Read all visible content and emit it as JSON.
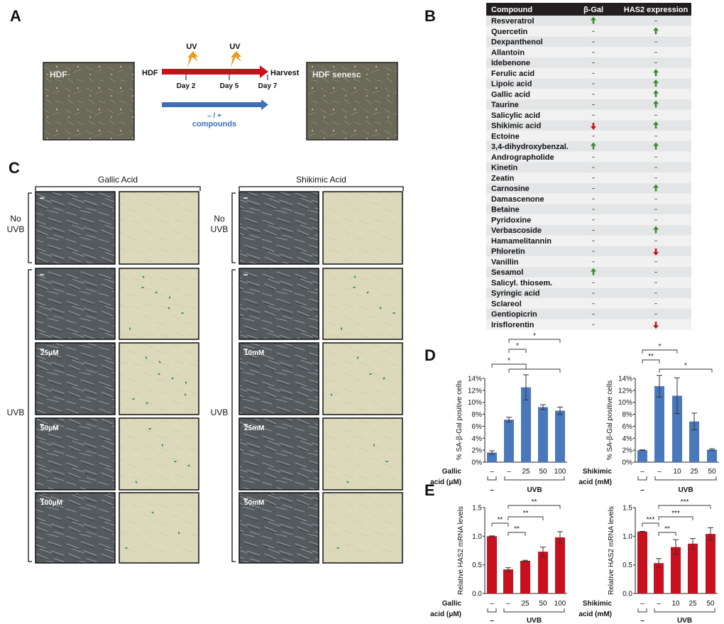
{
  "panel_labels": {
    "a": "A",
    "b": "B",
    "c": "C",
    "d": "D",
    "e": "E"
  },
  "panel_a": {
    "left_image_label": "HDF",
    "right_image_label": "HDF senesc",
    "start_label": "HDF",
    "end_label": "Harvest",
    "uv_labels": [
      "UV",
      "UV"
    ],
    "days": [
      "Day 2",
      "Day 5",
      "Day 7"
    ],
    "treatment_line1": "– / +",
    "treatment_line2": "compounds",
    "colors": {
      "timeline": "#c8101e",
      "treatment": "#3f6fb5",
      "uv_bolt": "#e79d1c"
    }
  },
  "panel_b": {
    "headers": [
      "Compound",
      "β-Gal",
      "HAS2 expression"
    ],
    "rows": [
      {
        "compound": "Resveratrol",
        "bgal": "up",
        "has2": "-"
      },
      {
        "compound": "Quercetin",
        "bgal": "-",
        "has2": "up"
      },
      {
        "compound": "Dexpanthenol",
        "bgal": "-",
        "has2": "-"
      },
      {
        "compound": "Allantoin",
        "bgal": "-",
        "has2": "-"
      },
      {
        "compound": "Idebenone",
        "bgal": "-",
        "has2": "-"
      },
      {
        "compound": "Ferulic acid",
        "bgal": "-",
        "has2": "up"
      },
      {
        "compound": "Lipoic acid",
        "bgal": "-",
        "has2": "up"
      },
      {
        "compound": "Gallic acid",
        "bgal": "-",
        "has2": "up"
      },
      {
        "compound": "Taurine",
        "bgal": "-",
        "has2": "up"
      },
      {
        "compound": "Salicylic acid",
        "bgal": "-",
        "has2": "-"
      },
      {
        "compound": "Shikimic acid",
        "bgal": "down",
        "has2": "up"
      },
      {
        "compound": "Ectoine",
        "bgal": "-",
        "has2": "-"
      },
      {
        "compound": "3,4-dihydroxybenzal.",
        "bgal": "up",
        "has2": "up"
      },
      {
        "compound": "Andrographolide",
        "bgal": "-",
        "has2": "-"
      },
      {
        "compound": "Kinetin",
        "bgal": "-",
        "has2": "-"
      },
      {
        "compound": "Zeatin",
        "bgal": "-",
        "has2": "-"
      },
      {
        "compound": "Carnosine",
        "bgal": "-",
        "has2": "up"
      },
      {
        "compound": "Damascenone",
        "bgal": "-",
        "has2": "-"
      },
      {
        "compound": "Betaine",
        "bgal": "-",
        "has2": "-"
      },
      {
        "compound": "Pyridoxine",
        "bgal": "-",
        "has2": "-"
      },
      {
        "compound": "Verbascoside",
        "bgal": "-",
        "has2": "up"
      },
      {
        "compound": "Hamamelitannin",
        "bgal": "-",
        "has2": "-"
      },
      {
        "compound": "Phloretin",
        "bgal": "-",
        "has2": "down"
      },
      {
        "compound": "Vanillin",
        "bgal": "-",
        "has2": "-"
      },
      {
        "compound": "Sesamol",
        "bgal": "up",
        "has2": "-"
      },
      {
        "compound": "Salicyl. thiosem.",
        "bgal": "-",
        "has2": "-"
      },
      {
        "compound": "Syringic acid",
        "bgal": "-",
        "has2": "-"
      },
      {
        "compound": "Sclareol",
        "bgal": "-",
        "has2": "-"
      },
      {
        "compound": "Gentiopicrin",
        "bgal": "-",
        "has2": "-"
      },
      {
        "compound": "Irisflorentin",
        "bgal": "-",
        "has2": "down"
      }
    ],
    "colors": {
      "header_bg": "#231f20",
      "up": "#3a8a2e",
      "down": "#c8101e"
    }
  },
  "panel_c": {
    "groups": [
      {
        "title": "Gallic Acid",
        "conc_labels": [
          "",
          "",
          "25μM",
          "50μM",
          "100μM"
        ]
      },
      {
        "title": "Shikimic Acid",
        "conc_labels": [
          "",
          "",
          "10mM",
          "25mM",
          "50mM"
        ]
      }
    ],
    "row_group_labels": {
      "no_uvb_1": "No",
      "no_uvb_2": "UVB",
      "uvb": "UVB"
    }
  },
  "chart_data": [
    {
      "panel": "D",
      "type": "bar",
      "ylabel": "% SA-β-Gal positive cells",
      "ylim": [
        0,
        14
      ],
      "yticks": [
        0,
        2,
        4,
        6,
        8,
        10,
        12,
        14
      ],
      "ytick_format": "percent",
      "categories": [
        "–",
        "–",
        "25",
        "50",
        "100"
      ],
      "x_row_label": [
        "Gallic",
        "acid (μM)"
      ],
      "groups": [
        {
          "label": "–",
          "bars": [
            1,
            1
          ]
        },
        {
          "label": "UVB",
          "bars": [
            2,
            5
          ]
        }
      ],
      "values": [
        1.6,
        7.1,
        12.5,
        9.2,
        8.6
      ],
      "errors": [
        0.3,
        0.4,
        2.1,
        0.4,
        0.6
      ],
      "color": "#4a78bd",
      "comparisons": [
        {
          "a": [
            2,
            2
          ],
          "b": [
            5,
            5
          ],
          "label": "*"
        },
        {
          "a": [
            2,
            2
          ],
          "b": [
            3,
            3
          ],
          "label": "*"
        },
        {
          "a": [
            1,
            1
          ],
          "b": [
            2,
            5
          ],
          "label": "*"
        }
      ]
    },
    {
      "panel": "D",
      "type": "bar",
      "ylabel": "% SA-β-Gal positive cells",
      "ylim": [
        0,
        14
      ],
      "yticks": [
        0,
        2,
        4,
        6,
        8,
        10,
        12,
        14
      ],
      "ytick_format": "percent",
      "categories": [
        "–",
        "–",
        "10",
        "25",
        "50"
      ],
      "x_row_label": [
        "Shikimic",
        "acid (mM)"
      ],
      "groups": [
        {
          "label": "–",
          "bars": [
            1,
            1
          ]
        },
        {
          "label": "UVB",
          "bars": [
            2,
            5
          ]
        }
      ],
      "values": [
        2.0,
        12.7,
        11.1,
        6.8,
        2.1
      ],
      "errors": [
        0.05,
        1.8,
        3.0,
        1.4,
        0.15
      ],
      "color": "#4a78bd",
      "comparisons": [
        {
          "a": [
            1,
            1
          ],
          "b": [
            3,
            3
          ],
          "label": "*"
        },
        {
          "a": [
            1,
            1
          ],
          "b": [
            2,
            2
          ],
          "label": "**"
        },
        {
          "a": [
            2,
            2
          ],
          "b": [
            5,
            5
          ],
          "label": "*"
        }
      ]
    },
    {
      "panel": "E",
      "type": "bar",
      "ylabel": "Relative HAS2 mRNA levels",
      "ylim": [
        0,
        1.5
      ],
      "yticks": [
        0,
        0.5,
        1.0,
        1.5
      ],
      "ytick_format": "decimal1",
      "categories": [
        "–",
        "–",
        "25",
        "50",
        "100"
      ],
      "x_row_label": [
        "Gallic",
        "acid (μM)"
      ],
      "groups": [
        {
          "label": "–",
          "bars": [
            1,
            1
          ]
        },
        {
          "label": "UVB",
          "bars": [
            2,
            5
          ]
        }
      ],
      "values": [
        1.0,
        0.42,
        0.57,
        0.73,
        0.98
      ],
      "errors": [
        0.005,
        0.03,
        0.01,
        0.08,
        0.1
      ],
      "color": "#c8101e",
      "comparisons": [
        {
          "a": [
            2,
            2
          ],
          "b": [
            5,
            5
          ],
          "label": "**"
        },
        {
          "a": [
            2,
            2
          ],
          "b": [
            4,
            4
          ],
          "label": "**"
        },
        {
          "a": [
            1,
            1
          ],
          "b": [
            2,
            2
          ],
          "label": "**"
        },
        {
          "a": [
            2,
            2
          ],
          "b": [
            3,
            3
          ],
          "label": "**"
        }
      ]
    },
    {
      "panel": "E",
      "type": "bar",
      "ylabel": "Relative HAS2 mRNA levels",
      "ylim": [
        0,
        1.5
      ],
      "yticks": [
        0,
        0.5,
        1.0,
        1.5
      ],
      "ytick_format": "decimal1",
      "categories": [
        "–",
        "–",
        "10",
        "25",
        "50"
      ],
      "x_row_label": [
        "Shikimic",
        "acid (mM)"
      ],
      "groups": [
        {
          "label": "–",
          "bars": [
            1,
            1
          ]
        },
        {
          "label": "UVB",
          "bars": [
            2,
            5
          ]
        }
      ],
      "values": [
        1.08,
        0.53,
        0.81,
        0.87,
        1.04
      ],
      "errors": [
        0.005,
        0.08,
        0.13,
        0.09,
        0.11
      ],
      "color": "#c8101e",
      "comparisons": [
        {
          "a": [
            2,
            2
          ],
          "b": [
            5,
            5
          ],
          "label": "***"
        },
        {
          "a": [
            2,
            2
          ],
          "b": [
            4,
            4
          ],
          "label": "***"
        },
        {
          "a": [
            1,
            1
          ],
          "b": [
            2,
            2
          ],
          "label": "***"
        },
        {
          "a": [
            2,
            2
          ],
          "b": [
            3,
            3
          ],
          "label": "**"
        }
      ]
    }
  ]
}
